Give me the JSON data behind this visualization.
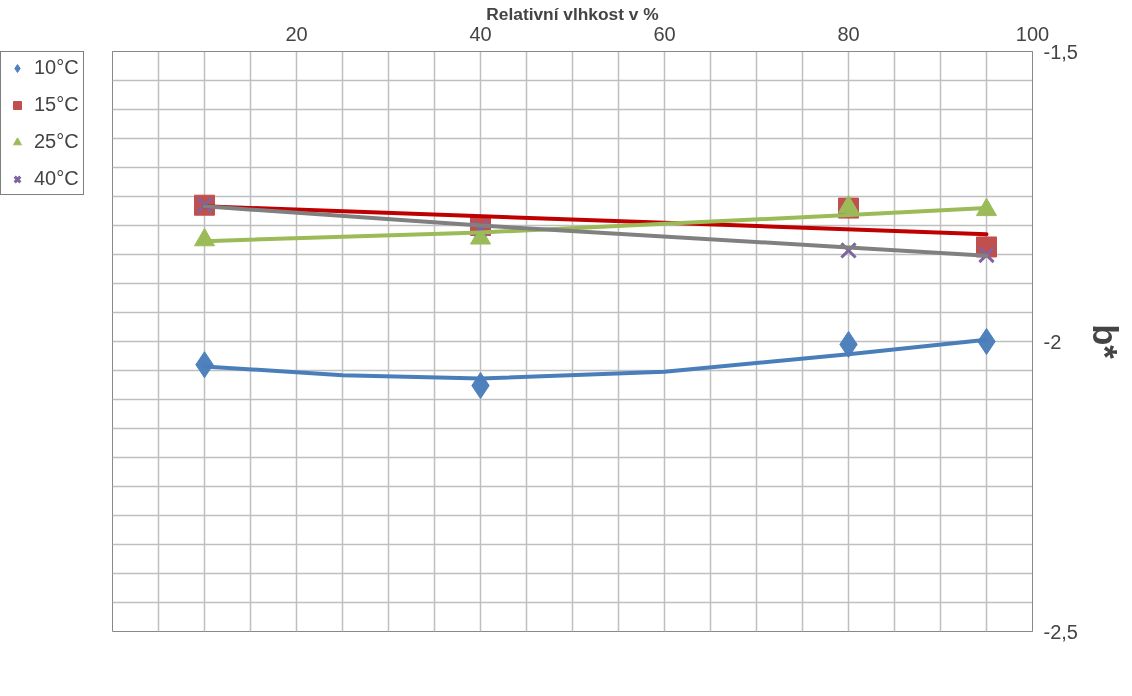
{
  "chart_data": {
    "type": "scatter",
    "xlabel": "Relativní vlhkost v %",
    "ylabel": "b*",
    "x": [
      10,
      40,
      80,
      95
    ],
    "xlim": [
      0,
      100
    ],
    "xticks": [
      {
        "value": 5,
        "label": null
      },
      {
        "value": 10,
        "label": null
      },
      {
        "value": 15,
        "label": null
      },
      20,
      {
        "value": 25,
        "label": null
      },
      {
        "value": 30,
        "label": null
      },
      {
        "value": 35,
        "label": null
      },
      40,
      {
        "value": 45,
        "label": null
      },
      {
        "value": 50,
        "label": null
      },
      {
        "value": 55,
        "label": null
      },
      60,
      {
        "value": 65,
        "label": null
      },
      {
        "value": 70,
        "label": null
      },
      {
        "value": 75,
        "label": null
      },
      80,
      {
        "value": 85,
        "label": null
      },
      {
        "value": 90,
        "label": null
      },
      {
        "value": 95,
        "label": null
      },
      100
    ],
    "ylim": [
      -2.5,
      -1.5
    ],
    "yticks": [
      {
        "value": -2.5,
        "label": "-2,5"
      },
      {
        "value": -2.45,
        "label": null
      },
      {
        "value": -2.4,
        "label": null
      },
      {
        "value": -2.35,
        "label": null
      },
      {
        "value": -2.3,
        "label": null
      },
      {
        "value": -2.25,
        "label": null
      },
      {
        "value": -2.2,
        "label": null
      },
      {
        "value": -2.15,
        "label": null
      },
      {
        "value": -2.1,
        "label": null
      },
      {
        "value": -2.05,
        "label": null
      },
      -2,
      {
        "value": -1.95,
        "label": null
      },
      {
        "value": -1.9,
        "label": null
      },
      {
        "value": -1.85,
        "label": null
      },
      {
        "value": -1.8,
        "label": null
      },
      {
        "value": -1.75,
        "label": null
      },
      {
        "value": -1.7,
        "label": null
      },
      {
        "value": -1.65,
        "label": null
      },
      {
        "value": -1.6,
        "label": null
      },
      {
        "value": -1.55,
        "label": null
      },
      {
        "value": -1.5,
        "label": "-1,5"
      }
    ],
    "grid": true,
    "legend": "top left",
    "series": [
      {
        "name": "10°C",
        "color": "#4f81bd",
        "marker": "diamond",
        "values": [
          -2.04,
          -2.076,
          -2.005,
          -2.0
        ]
      },
      {
        "name": "15°C",
        "color": "#c0504d",
        "marker": "square",
        "values": [
          -1.765,
          -1.8,
          -1.77,
          -1.837
        ]
      },
      {
        "name": "25°C",
        "color": "#9bbb59",
        "marker": "triangle",
        "values": [
          -1.825,
          -1.822,
          -1.768,
          -1.773
        ]
      },
      {
        "name": "40°C",
        "color": "#8064a2",
        "marker": "cross",
        "values": [
          -1.765,
          -1.805,
          -1.843,
          -1.851
        ]
      },
      {
        "type": "line",
        "color": "#4a7ebb",
        "x": [
          10,
          25,
          40,
          60,
          80,
          95
        ],
        "values": [
          -2.043,
          -2.058,
          -2.064,
          -2.052,
          -2.022,
          -1.997
        ]
      },
      {
        "type": "line",
        "color": "#c00000",
        "x": [
          10,
          95
        ],
        "values": [
          -1.767,
          -1.815
        ]
      },
      {
        "type": "line",
        "color": "#9bbb59",
        "x": [
          10,
          40,
          80,
          95
        ],
        "values": [
          -1.827,
          -1.812,
          -1.782,
          -1.77
        ]
      },
      {
        "type": "line",
        "color": "#808080",
        "x": [
          10,
          40,
          80,
          95
        ],
        "values": [
          -1.767,
          -1.8,
          -1.838,
          -1.852
        ]
      }
    ]
  }
}
